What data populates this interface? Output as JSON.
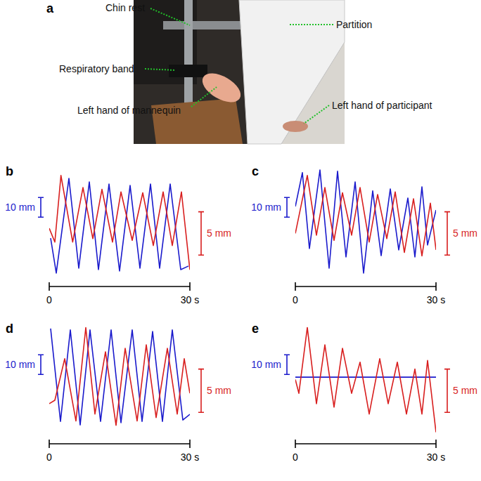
{
  "photo": {
    "label": "a",
    "annotations": [
      "Chin rest",
      "Respiratory band",
      "Left hand of mannequin",
      "Partition",
      "Left hand of participant"
    ]
  },
  "chart_data": [
    {
      "type": "line",
      "title": "b",
      "xlim": [
        0,
        30
      ],
      "xticks": [
        0,
        {
          "value": 30,
          "label": "30 s"
        }
      ],
      "ylim": [
        0,
        55
      ],
      "y2lim": [
        0,
        12.5
      ],
      "tick_labels": "x",
      "y_scale_bar": {
        "value": 10,
        "label": "10 mm"
      },
      "y2_scale_bar": {
        "value": 5,
        "label": "5 mm"
      },
      "series": [
        {
          "color": "#1a1acc",
          "x": [
            0.3,
            1.5,
            4.2,
            6.3,
            8.55,
            10.5,
            12.75,
            15.0,
            17.25,
            19.35,
            21.6,
            23.55,
            25.8,
            28.05,
            29.7
          ],
          "values": [
            19.6,
            1.8,
            50.0,
            4.3,
            48.2,
            3.6,
            47.1,
            2.9,
            46.4,
            4.3,
            47.1,
            4.3,
            47.1,
            3.6,
            5.4
          ]
        },
        {
          "color": "#d81e1e",
          "axis": "y2",
          "x": [
            0,
            1.2,
            2.5,
            5.0,
            7.2,
            9.3,
            11.25,
            13.5,
            15.3,
            17.7,
            19.95,
            22.2,
            24.3,
            26.25,
            28.2,
            30.0
          ],
          "values": [
            5.6,
            4.0,
            11.7,
            4.0,
            10.3,
            4.4,
            10.1,
            4.0,
            9.8,
            4.2,
            9.7,
            3.6,
            9.8,
            3.6,
            9.8,
            0.8
          ]
        }
      ]
    },
    {
      "type": "line",
      "title": "c",
      "xlim": [
        0,
        30
      ],
      "xticks": [
        0,
        {
          "value": 30,
          "label": "30 s"
        }
      ],
      "ylim": [
        0,
        55
      ],
      "y2lim": [
        0,
        12.5
      ],
      "tick_labels": "x",
      "y_scale_bar": {
        "value": 10,
        "label": "10 mm"
      },
      "y2_scale_bar": {
        "value": 5,
        "label": "5 mm"
      },
      "series": [
        {
          "color": "#1a1acc",
          "x": [
            0,
            1.5,
            3.0,
            5.25,
            7.2,
            9.0,
            10.8,
            12.75,
            14.55,
            16.5,
            18.3,
            20.25,
            22.05,
            24.0,
            25.5,
            27.0,
            28.2,
            30.0
          ],
          "values": [
            35.7,
            52.9,
            14.3,
            54.3,
            4.3,
            53.6,
            10.0,
            48.2,
            1.8,
            43.6,
            10.7,
            44.6,
            13.6,
            40.0,
            10.0,
            45.7,
            16.1,
            33.9
          ]
        },
        {
          "color": "#d81e1e",
          "axis": "y2",
          "x": [
            0,
            2.55,
            4.5,
            6.3,
            8.25,
            10.05,
            12.0,
            13.8,
            15.75,
            17.55,
            19.5,
            21.3,
            23.25,
            25.2,
            27.0,
            28.8,
            30.0
          ],
          "values": [
            5.0,
            11.7,
            4.8,
            10.3,
            4.2,
            9.7,
            4.8,
            10.3,
            4.0,
            9.5,
            4.4,
            9.8,
            2.8,
            9.0,
            2.4,
            8.5,
            3.1
          ]
        }
      ]
    },
    {
      "type": "line",
      "title": "d",
      "xlim": [
        0,
        30
      ],
      "xticks": [
        0,
        {
          "value": 30,
          "label": "30 s"
        }
      ],
      "ylim": [
        0,
        55
      ],
      "y2lim": [
        0,
        12.5
      ],
      "tick_labels": "x",
      "y_scale_bar": {
        "value": 10,
        "label": "10 mm"
      },
      "y2_scale_bar": {
        "value": 5,
        "label": "5 mm"
      },
      "series": [
        {
          "color": "#1a1acc",
          "x": [
            0.3,
            2.4,
            4.5,
            6.6,
            8.7,
            10.95,
            13.2,
            15.3,
            17.7,
            19.8,
            22.05,
            24.15,
            26.25,
            28.5,
            30.0
          ],
          "values": [
            53.6,
            6.4,
            52.9,
            4.6,
            52.9,
            6.4,
            52.9,
            5.7,
            52.9,
            6.4,
            52.1,
            6.4,
            52.9,
            7.1,
            10.0
          ]
        },
        {
          "color": "#d81e1e",
          "axis": "y2",
          "x": [
            0,
            1.2,
            3.3,
            5.7,
            7.8,
            9.75,
            12.0,
            14.25,
            16.2,
            18.75,
            20.7,
            22.8,
            25.2,
            27.3,
            28.8,
            30.0
          ],
          "values": [
            3.5,
            3.9,
            8.7,
            1.5,
            12.3,
            2.3,
            9.5,
            1.0,
            9.9,
            1.5,
            10.3,
            1.9,
            9.9,
            2.3,
            8.7,
            4.7
          ]
        }
      ]
    },
    {
      "type": "line",
      "title": "e",
      "xlim": [
        0,
        30
      ],
      "xticks": [
        0,
        {
          "value": 30,
          "label": "30 s"
        }
      ],
      "ylim": [
        0,
        55
      ],
      "y2lim": [
        0,
        12.5
      ],
      "tick_labels": "x",
      "y_scale_bar": {
        "value": 10,
        "label": "10 mm"
      },
      "y2_scale_bar": {
        "value": 5,
        "label": "5 mm"
      },
      "series": [
        {
          "color": "#1a1acc",
          "x": [
            0,
            30
          ],
          "values": [
            28.9,
            28.9
          ]
        },
        {
          "color": "#d81e1e",
          "axis": "y2",
          "x": [
            0,
            0.75,
            2.55,
            4.5,
            6.3,
            8.25,
            10.05,
            12.0,
            13.8,
            15.75,
            18.0,
            19.8,
            21.75,
            23.7,
            25.5,
            27.0,
            28.2,
            30.0
          ],
          "values": [
            6.3,
            4.7,
            12.3,
            3.5,
            10.3,
            3.1,
            9.9,
            4.7,
            8.3,
            2.3,
            8.7,
            3.5,
            8.3,
            2.3,
            7.5,
            2.3,
            8.5,
            0.2
          ]
        }
      ]
    }
  ]
}
